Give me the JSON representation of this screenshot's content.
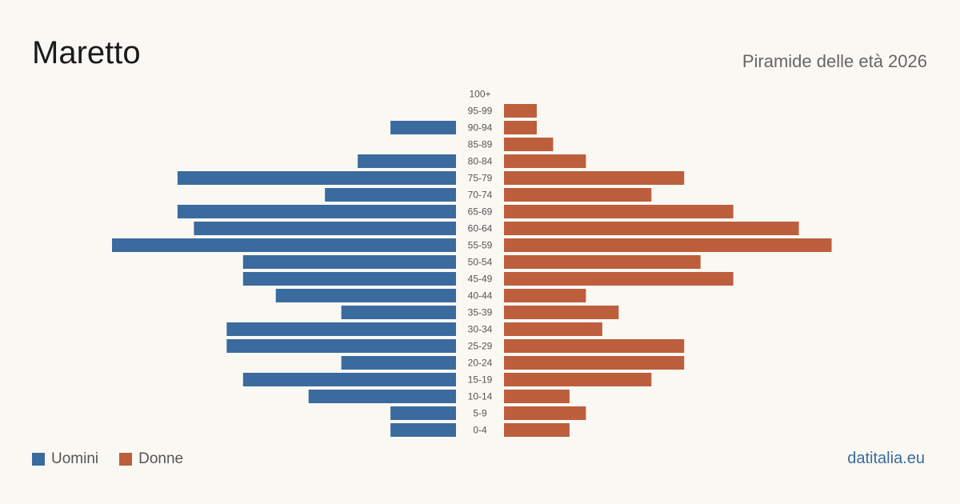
{
  "header": {
    "title": "Maretto",
    "subtitle": "Piramide delle età 2026"
  },
  "legend": {
    "items": [
      {
        "label": "Uomini",
        "color": "#3a6b9e"
      },
      {
        "label": "Donne",
        "color": "#bd5e3c"
      }
    ]
  },
  "footer": {
    "brand": "datitalia.eu"
  },
  "chart_data": {
    "type": "bar",
    "orientation": "horizontal-pyramid",
    "categories": [
      "100+",
      "95-99",
      "90-94",
      "85-89",
      "80-84",
      "75-79",
      "70-74",
      "65-69",
      "60-64",
      "55-59",
      "50-54",
      "45-49",
      "40-44",
      "35-39",
      "30-34",
      "25-29",
      "20-24",
      "15-19",
      "10-14",
      "5-9",
      "0-4"
    ],
    "series": [
      {
        "name": "Uomini",
        "color": "#3a6b9e",
        "values": [
          0,
          0,
          4,
          0,
          6,
          17,
          8,
          17,
          16,
          21,
          13,
          13,
          11,
          7,
          14,
          14,
          7,
          13,
          9,
          4,
          4
        ]
      },
      {
        "name": "Donne",
        "color": "#bd5e3c",
        "values": [
          0,
          2,
          2,
          3,
          5,
          11,
          9,
          14,
          18,
          20,
          12,
          14,
          5,
          7,
          6,
          11,
          11,
          9,
          4,
          5,
          4
        ]
      }
    ],
    "xlim": [
      0,
      21
    ],
    "grid": false,
    "legend_position": "bottom-left"
  }
}
